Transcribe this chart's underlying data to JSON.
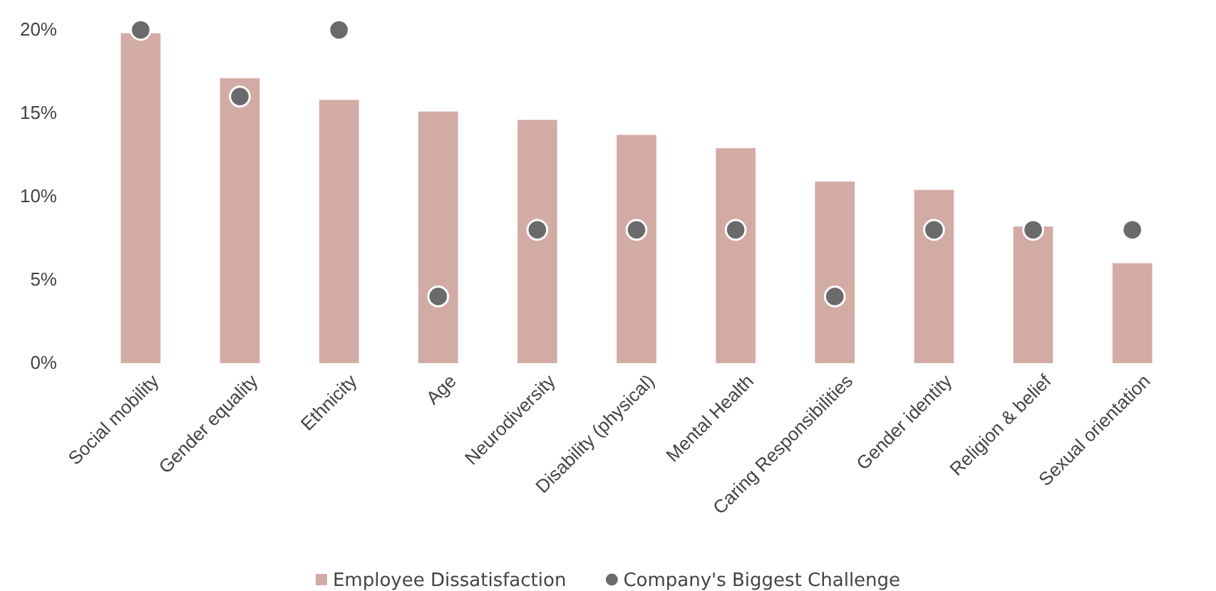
{
  "chart_data": {
    "type": "bar",
    "categories": [
      "Social mobility",
      "Gender equality",
      "Ethnicity",
      "Age",
      "Neurodiversity",
      "Disability (physical)",
      "Mental Health",
      "Caring Responsibilities",
      "Gender identity",
      "Religion & belief",
      "Sexual orientation"
    ],
    "series": [
      {
        "name": "Employee Dissatisfaction",
        "color": "#d3aba5",
        "values": [
          19.8,
          17.1,
          15.8,
          15.1,
          14.6,
          13.7,
          12.9,
          10.9,
          10.4,
          8.2,
          6.0
        ]
      },
      {
        "name": "Company's Biggest Challenge",
        "type": "scatter",
        "color": "#6b6a6a",
        "values": [
          20,
          16,
          20,
          4,
          8,
          8,
          8,
          4,
          8,
          8,
          8
        ]
      }
    ],
    "ylim": [
      0,
      20
    ],
    "yticks": [
      {
        "value": 0,
        "label": "0%"
      },
      {
        "value": 5,
        "label": "5%"
      },
      {
        "value": 10,
        "label": "10%"
      },
      {
        "value": 15,
        "label": "15%"
      },
      {
        "value": 20,
        "label": "20%"
      }
    ],
    "grid": false,
    "legend": "bottom",
    "marker": "circle"
  }
}
